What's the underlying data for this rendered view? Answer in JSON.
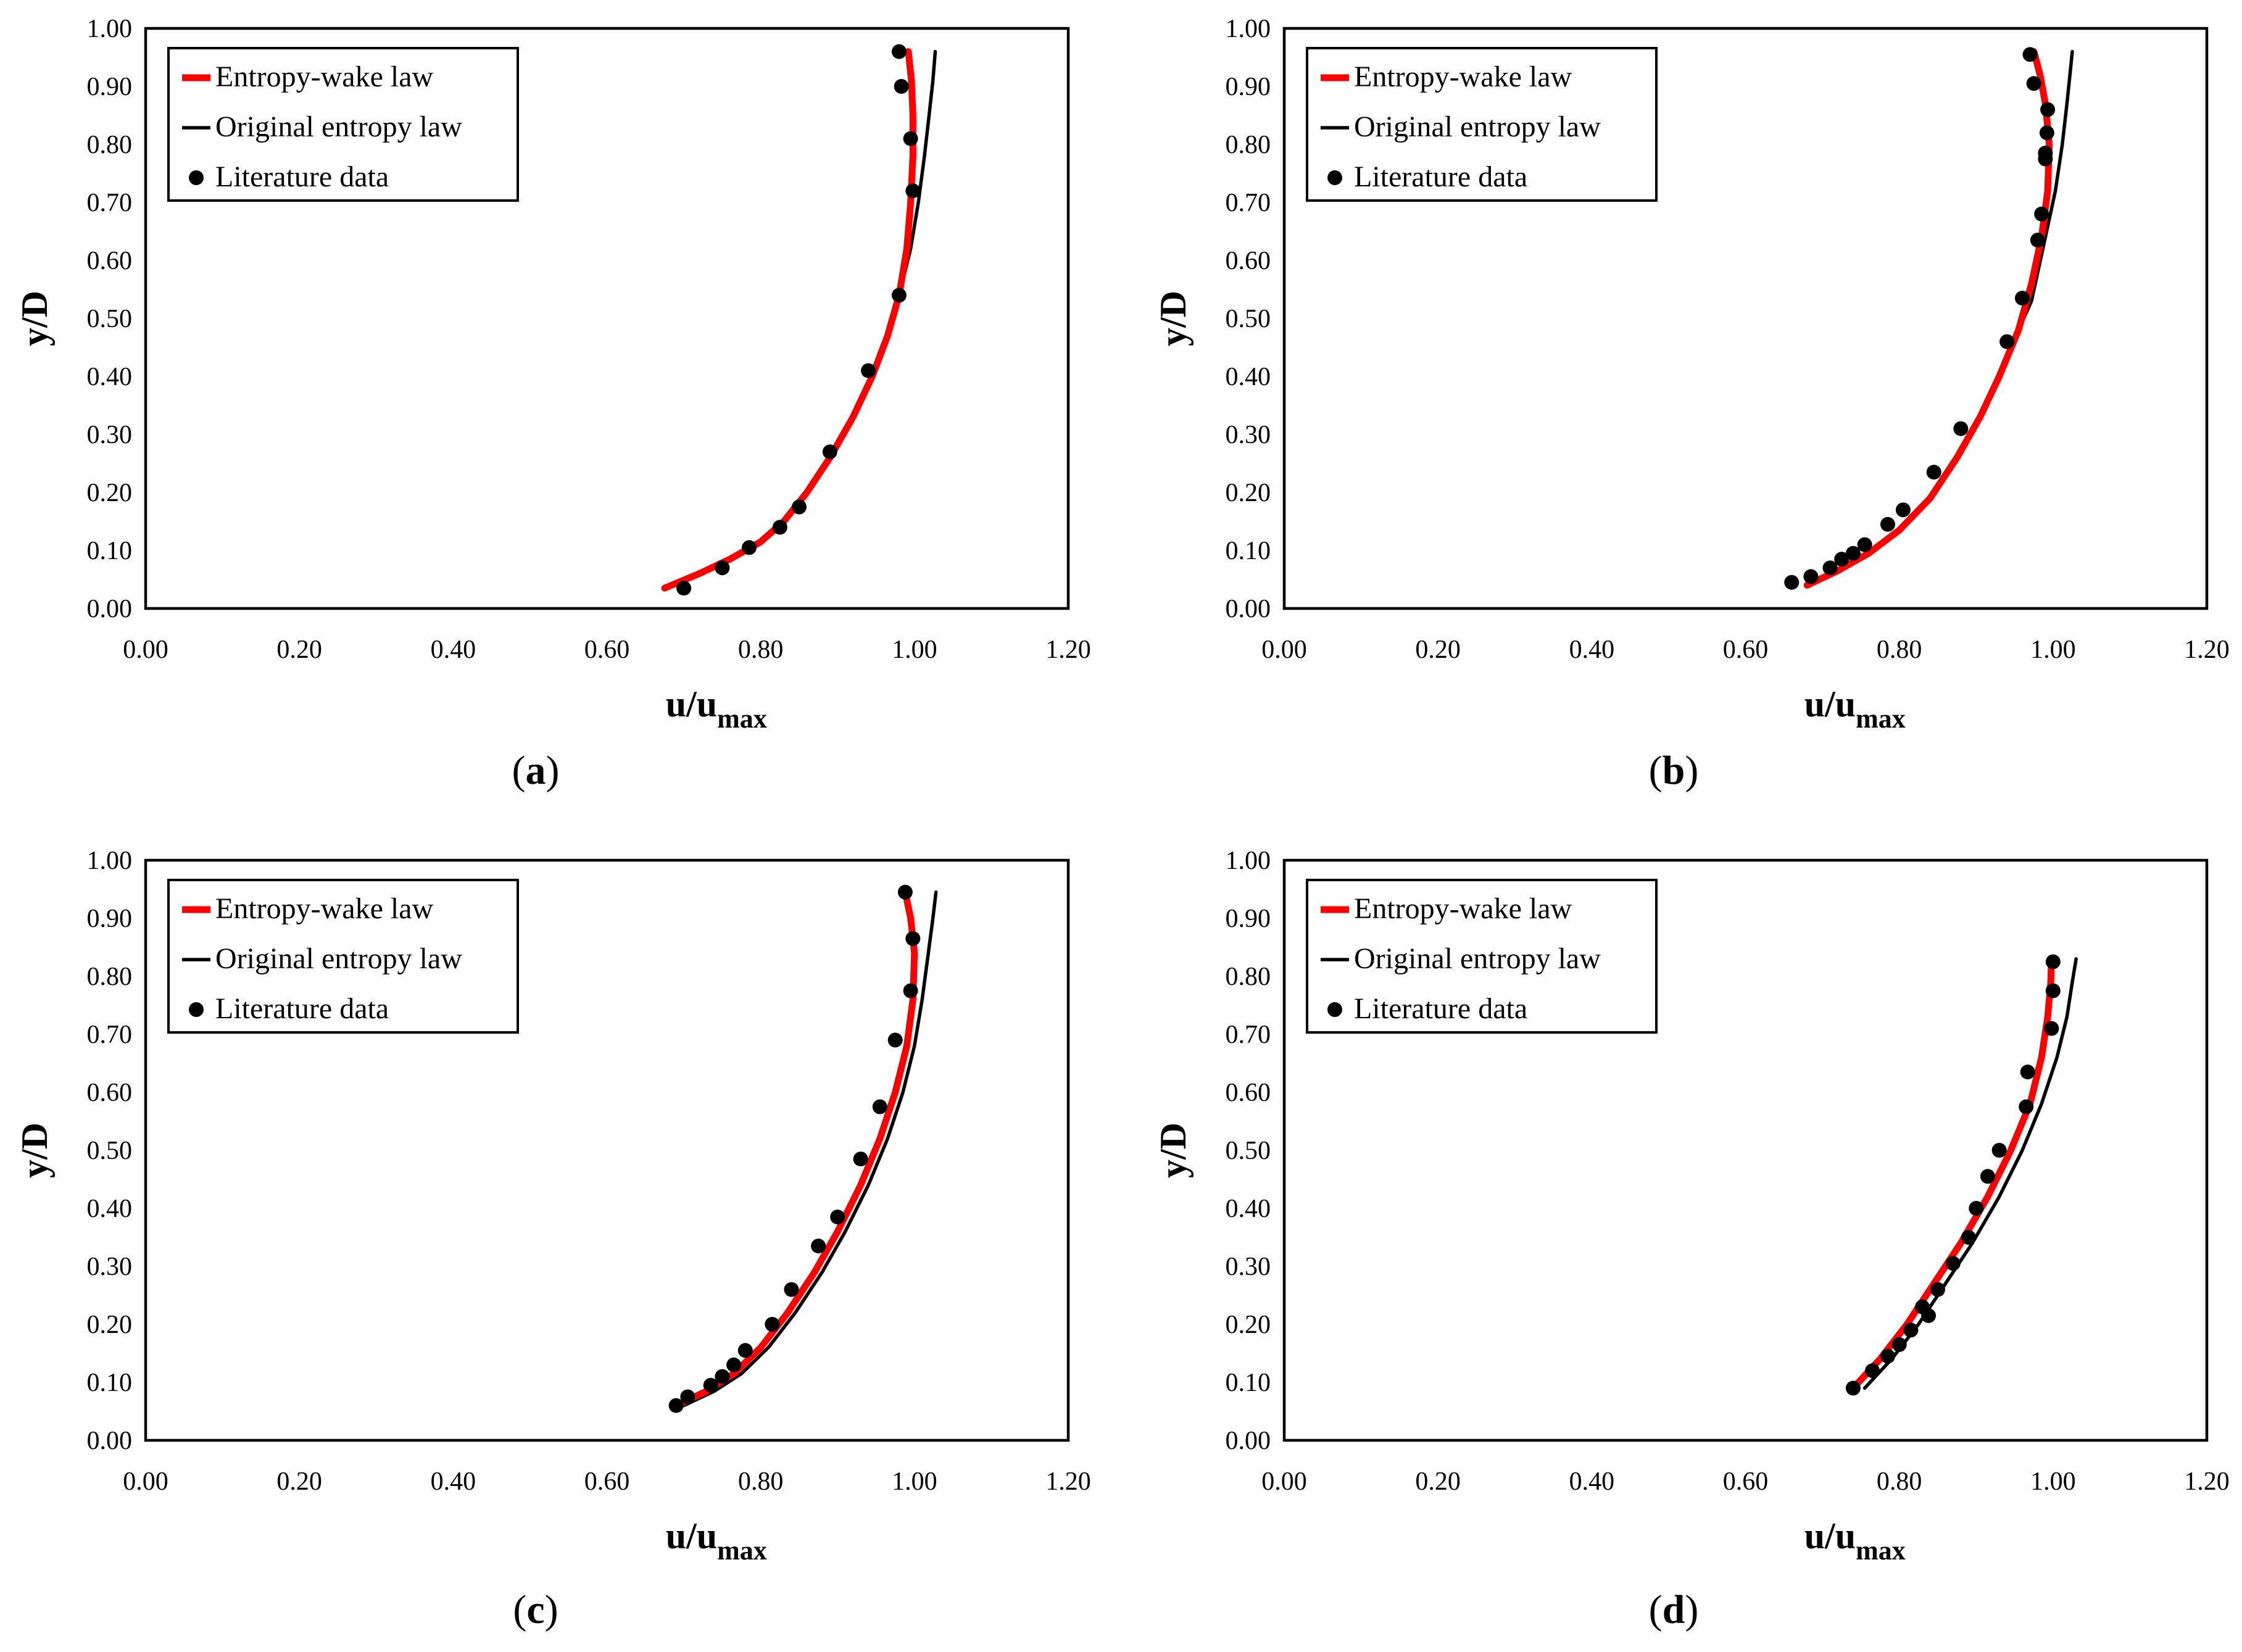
{
  "colors": {
    "entropy_wake": "#ff0000",
    "original": "#000000",
    "literature": "#000000"
  },
  "chart_data": [
    {
      "panel": "a",
      "caption": "(a)",
      "type": "line",
      "xlabel_main": "u/u",
      "xlabel_sub": "max",
      "ylabel": "y/D",
      "xlim": [
        0,
        1.2
      ],
      "ylim": [
        0,
        1.0
      ],
      "xticks": [
        "0.00",
        "0.20",
        "0.40",
        "0.60",
        "0.80",
        "1.00",
        "1.20"
      ],
      "yticks": [
        "0.00",
        "0.10",
        "0.20",
        "0.30",
        "0.40",
        "0.50",
        "0.60",
        "0.70",
        "0.80",
        "0.90",
        "1.00"
      ],
      "legend": [
        "Entropy-wake law",
        "Original entropy law",
        "Literature data"
      ],
      "series": [
        {
          "name": "Entropy-wake law",
          "style": "line-red",
          "x": [
            0.675,
            0.72,
            0.76,
            0.8,
            0.83,
            0.86,
            0.89,
            0.92,
            0.945,
            0.965,
            0.98,
            0.99,
            0.995,
            0.998,
            0.998,
            0.996,
            0.992
          ],
          "y": [
            0.035,
            0.06,
            0.085,
            0.115,
            0.15,
            0.2,
            0.26,
            0.33,
            0.4,
            0.47,
            0.54,
            0.62,
            0.7,
            0.78,
            0.85,
            0.91,
            0.96
          ]
        },
        {
          "name": "Original entropy law",
          "style": "line-black",
          "x": [
            0.675,
            0.72,
            0.76,
            0.8,
            0.83,
            0.86,
            0.89,
            0.92,
            0.945,
            0.965,
            0.98,
            0.995,
            1.005,
            1.013,
            1.019,
            1.024,
            1.027
          ],
          "y": [
            0.035,
            0.06,
            0.085,
            0.115,
            0.15,
            0.2,
            0.26,
            0.33,
            0.4,
            0.47,
            0.54,
            0.62,
            0.7,
            0.78,
            0.85,
            0.91,
            0.96
          ]
        },
        {
          "name": "Literature data",
          "style": "points",
          "x": [
            0.7,
            0.75,
            0.785,
            0.825,
            0.85,
            0.89,
            0.94,
            0.98,
            0.998,
            0.995,
            0.983,
            0.98
          ],
          "y": [
            0.035,
            0.07,
            0.105,
            0.14,
            0.175,
            0.27,
            0.41,
            0.54,
            0.72,
            0.81,
            0.9,
            0.96
          ]
        }
      ]
    },
    {
      "panel": "b",
      "caption": "(b)",
      "type": "line",
      "xlabel_main": "u/u",
      "xlabel_sub": "max",
      "ylabel": "y/D",
      "xlim": [
        0,
        1.2
      ],
      "ylim": [
        0,
        1.0
      ],
      "xticks": [
        "0.00",
        "0.20",
        "0.40",
        "0.60",
        "0.80",
        "1.00",
        "1.20"
      ],
      "yticks": [
        "0.00",
        "0.10",
        "0.20",
        "0.30",
        "0.40",
        "0.50",
        "0.60",
        "0.70",
        "0.80",
        "0.90",
        "1.00"
      ],
      "legend": [
        "Entropy-wake law",
        "Original entropy law",
        "Literature data"
      ],
      "series": [
        {
          "name": "Entropy-wake law",
          "style": "line-red",
          "x": [
            0.68,
            0.72,
            0.76,
            0.8,
            0.84,
            0.875,
            0.905,
            0.93,
            0.955,
            0.972,
            0.985,
            0.993,
            0.995,
            0.99,
            0.983,
            0.975
          ],
          "y": [
            0.04,
            0.065,
            0.095,
            0.135,
            0.19,
            0.26,
            0.33,
            0.4,
            0.48,
            0.56,
            0.64,
            0.72,
            0.8,
            0.87,
            0.92,
            0.96
          ]
        },
        {
          "name": "Original entropy law",
          "style": "line-black",
          "x": [
            0.68,
            0.72,
            0.76,
            0.8,
            0.84,
            0.875,
            0.905,
            0.93,
            0.955,
            0.972,
            0.99,
            1.003,
            1.012,
            1.018,
            1.022,
            1.025
          ],
          "y": [
            0.04,
            0.065,
            0.095,
            0.135,
            0.19,
            0.26,
            0.33,
            0.4,
            0.48,
            0.53,
            0.64,
            0.72,
            0.8,
            0.87,
            0.92,
            0.96
          ]
        },
        {
          "name": "Literature data",
          "style": "points",
          "x": [
            0.66,
            0.685,
            0.71,
            0.725,
            0.74,
            0.755,
            0.785,
            0.805,
            0.845,
            0.88,
            0.94,
            0.96,
            0.98,
            0.985,
            0.99,
            0.99,
            0.992,
            0.993,
            0.975,
            0.97
          ],
          "y": [
            0.045,
            0.055,
            0.07,
            0.085,
            0.095,
            0.11,
            0.145,
            0.17,
            0.235,
            0.31,
            0.46,
            0.535,
            0.635,
            0.68,
            0.775,
            0.785,
            0.82,
            0.86,
            0.905,
            0.955
          ]
        }
      ]
    },
    {
      "panel": "c",
      "caption": "(c)",
      "type": "line",
      "xlabel_main": "u/u",
      "xlabel_sub": "max",
      "ylabel": "y/D",
      "xlim": [
        0,
        1.2
      ],
      "ylim": [
        0,
        1.0
      ],
      "xticks": [
        "0.00",
        "0.20",
        "0.40",
        "0.60",
        "0.80",
        "1.00",
        "1.20"
      ],
      "yticks": [
        "0.00",
        "0.10",
        "0.20",
        "0.30",
        "0.40",
        "0.50",
        "0.60",
        "0.70",
        "0.80",
        "0.90",
        "1.00"
      ],
      "legend": [
        "Entropy-wake law",
        "Original entropy law",
        "Literature data"
      ],
      "series": [
        {
          "name": "Entropy-wake law",
          "style": "line-red",
          "x": [
            0.69,
            0.73,
            0.765,
            0.8,
            0.835,
            0.87,
            0.9,
            0.93,
            0.955,
            0.975,
            0.99,
            0.998,
            1.0,
            0.995,
            0.988
          ],
          "y": [
            0.06,
            0.085,
            0.115,
            0.16,
            0.22,
            0.29,
            0.36,
            0.44,
            0.52,
            0.6,
            0.68,
            0.76,
            0.84,
            0.9,
            0.945
          ]
        },
        {
          "name": "Original entropy law",
          "style": "line-black",
          "x": [
            0.7,
            0.74,
            0.775,
            0.81,
            0.845,
            0.88,
            0.91,
            0.94,
            0.965,
            0.985,
            1.0,
            1.01,
            1.018,
            1.024,
            1.028
          ],
          "y": [
            0.06,
            0.085,
            0.115,
            0.16,
            0.22,
            0.29,
            0.36,
            0.44,
            0.52,
            0.6,
            0.68,
            0.76,
            0.84,
            0.9,
            0.945
          ]
        },
        {
          "name": "Literature data",
          "style": "points",
          "x": [
            0.69,
            0.705,
            0.735,
            0.75,
            0.765,
            0.78,
            0.815,
            0.84,
            0.875,
            0.9,
            0.93,
            0.955,
            0.975,
            0.995,
            0.998,
            0.988
          ],
          "y": [
            0.06,
            0.075,
            0.095,
            0.11,
            0.13,
            0.155,
            0.2,
            0.26,
            0.335,
            0.385,
            0.485,
            0.575,
            0.69,
            0.775,
            0.865,
            0.945
          ]
        }
      ]
    },
    {
      "panel": "d",
      "caption": "(d)",
      "type": "line",
      "xlabel_main": "u/u",
      "xlabel_sub": "max",
      "ylabel": "y/D",
      "xlim": [
        0,
        1.2
      ],
      "ylim": [
        0,
        1.0
      ],
      "xticks": [
        "0.00",
        "0.20",
        "0.40",
        "0.60",
        "0.80",
        "1.00",
        "1.20"
      ],
      "yticks": [
        "0.00",
        "0.10",
        "0.20",
        "0.30",
        "0.40",
        "0.50",
        "0.60",
        "0.70",
        "0.80",
        "0.90",
        "1.00"
      ],
      "legend": [
        "Entropy-wake law",
        "Original entropy law",
        "Literature data"
      ],
      "series": [
        {
          "name": "Entropy-wake law",
          "style": "line-red",
          "x": [
            0.74,
            0.775,
            0.81,
            0.845,
            0.88,
            0.915,
            0.945,
            0.97,
            0.985,
            0.993,
            0.997,
            0.998
          ],
          "y": [
            0.09,
            0.14,
            0.2,
            0.27,
            0.34,
            0.42,
            0.5,
            0.58,
            0.66,
            0.73,
            0.79,
            0.83
          ]
        },
        {
          "name": "Original entropy law",
          "style": "line-black",
          "x": [
            0.755,
            0.79,
            0.825,
            0.86,
            0.895,
            0.93,
            0.96,
            0.985,
            1.005,
            1.018,
            1.025,
            1.03
          ],
          "y": [
            0.09,
            0.14,
            0.2,
            0.27,
            0.34,
            0.42,
            0.5,
            0.58,
            0.66,
            0.73,
            0.79,
            0.83
          ]
        },
        {
          "name": "Literature data",
          "style": "points",
          "x": [
            0.74,
            0.765,
            0.785,
            0.8,
            0.815,
            0.83,
            0.838,
            0.85,
            0.87,
            0.89,
            0.9,
            0.915,
            0.93,
            0.965,
            0.967,
            0.998,
            1.0,
            1.0
          ],
          "y": [
            0.09,
            0.12,
            0.145,
            0.165,
            0.19,
            0.23,
            0.215,
            0.26,
            0.305,
            0.35,
            0.4,
            0.455,
            0.5,
            0.575,
            0.635,
            0.71,
            0.775,
            0.825
          ]
        }
      ]
    }
  ]
}
